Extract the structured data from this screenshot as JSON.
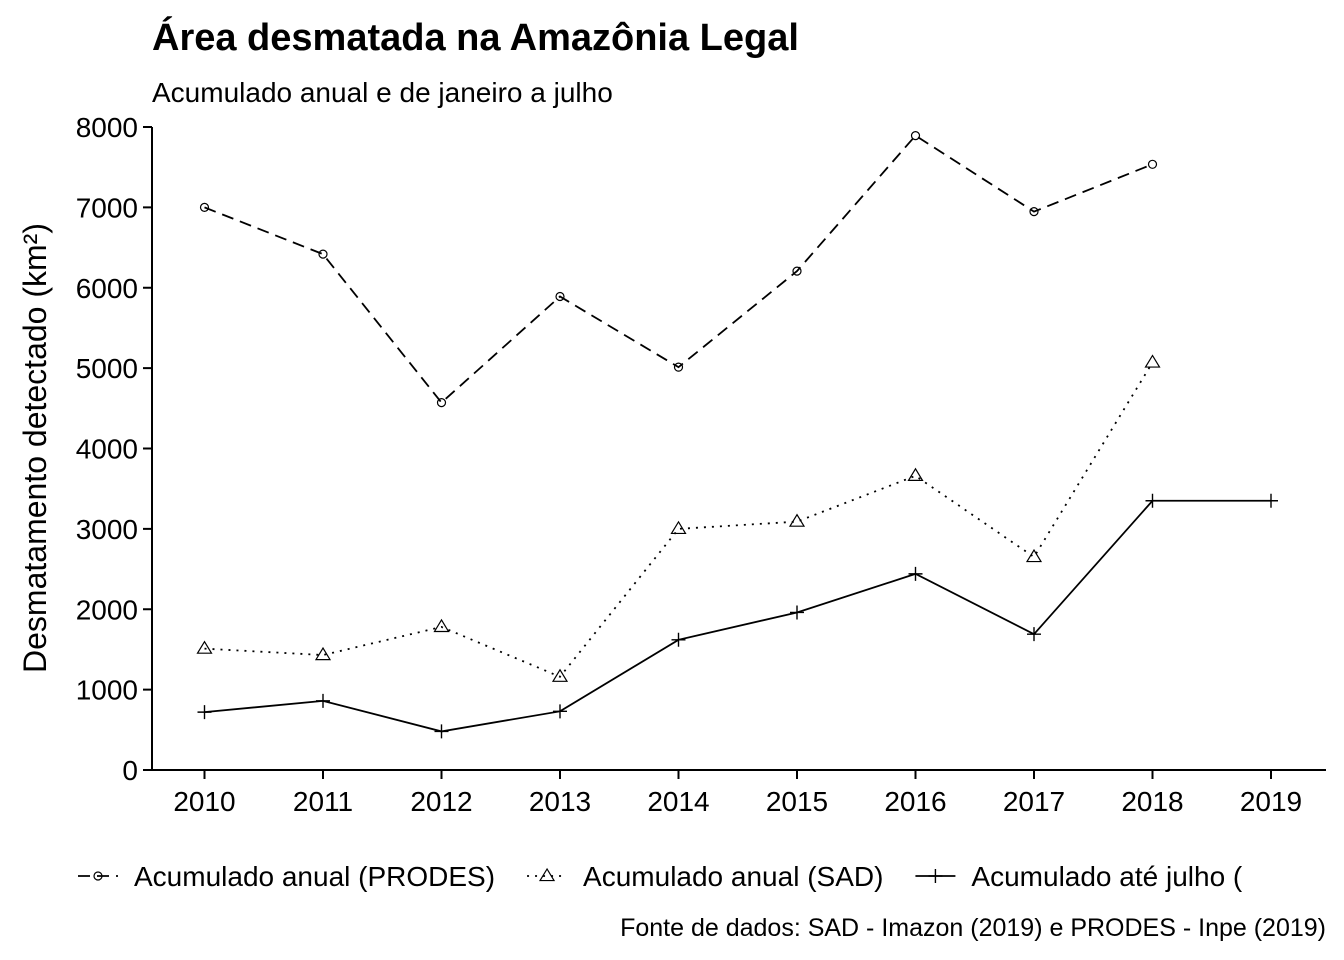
{
  "chart_data": {
    "type": "line",
    "title": "Área desmatada na Amazônia Legal",
    "subtitle": "Acumulado anual e de janeiro a julho",
    "ylabel": "Desmatamento detectado (km²)",
    "xlabel": "",
    "caption": "Fonte de dados: SAD - Imazon (2019) e PRODES - Inpe (2019)",
    "ylim": [
      0,
      8000
    ],
    "yticks": [
      "0",
      "1000",
      "2000",
      "3000",
      "4000",
      "5000",
      "6000",
      "7000",
      "8000"
    ],
    "categories": [
      "2010",
      "2011",
      "2012",
      "2013",
      "2014",
      "2015",
      "2016",
      "2017",
      "2018",
      "2019"
    ],
    "grid": false,
    "legend_position": "bottom",
    "series": [
      {
        "name": "Acumulado anual (PRODES)",
        "line_style": "dashed",
        "marker": "circle",
        "values": [
          7000,
          6418,
          4571,
          5891,
          5012,
          6207,
          7893,
          6947,
          7536,
          null
        ]
      },
      {
        "name": "Acumulado anual (SAD)",
        "line_style": "dotted",
        "marker": "triangle",
        "values": [
          1510,
          1430,
          1780,
          1160,
          3000,
          3090,
          3660,
          2650,
          5070,
          null
        ]
      },
      {
        "name": "Acumulado até julho (",
        "line_style": "solid",
        "marker": "plus",
        "values": [
          720,
          860,
          480,
          730,
          1620,
          1960,
          2440,
          1690,
          3350,
          3350
        ]
      }
    ],
    "colors": {
      "line": "#000000",
      "background": "#ffffff"
    }
  }
}
